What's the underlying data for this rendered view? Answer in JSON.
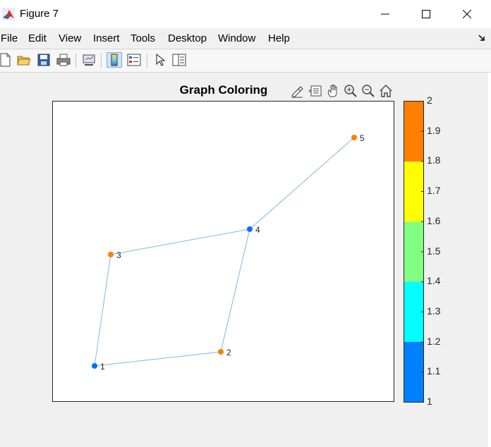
{
  "window": {
    "title": "Figure 7",
    "minimize_glyph": "─",
    "maximize_glyph": "□",
    "close_glyph": "✕"
  },
  "menu": [
    "File",
    "Edit",
    "View",
    "Insert",
    "Tools",
    "Desktop",
    "Window",
    "Help"
  ],
  "toolbar_icons": [
    "new-figure-icon",
    "open-file-icon",
    "save-icon",
    "print-icon",
    "link-plot-icon",
    "colorbar-icon",
    "legend-icon",
    "pointer-icon",
    "property-inspector-icon"
  ],
  "axes_toolbar_icons": [
    "brush-icon",
    "data-tips-icon",
    "pan-icon",
    "zoom-in-icon",
    "zoom-out-icon",
    "home-icon"
  ],
  "plot": {
    "title": "Graph Coloring",
    "nodes": [
      {
        "id": "1",
        "color_value": 1,
        "color": "#0072ff"
      },
      {
        "id": "2",
        "color_value": 2,
        "color": "#ff7f00"
      },
      {
        "id": "3",
        "color_value": 2,
        "color": "#ff7f00"
      },
      {
        "id": "4",
        "color_value": 1,
        "color": "#0072ff"
      },
      {
        "id": "5",
        "color_value": 2,
        "color": "#ff7f00"
      }
    ],
    "edges": [
      [
        "1",
        "2"
      ],
      [
        "1",
        "3"
      ],
      [
        "2",
        "4"
      ],
      [
        "3",
        "4"
      ],
      [
        "4",
        "5"
      ]
    ],
    "edge_color": "#7db9e0"
  },
  "colorbar": {
    "ticks": [
      "2",
      "1.9",
      "1.8",
      "1.7",
      "1.6",
      "1.5",
      "1.4",
      "1.3",
      "1.2",
      "1.1",
      "1"
    ],
    "colors_top_to_bottom": [
      "#ff7f00",
      "#ffff00",
      "#80ff80",
      "#00ffff",
      "#0080ff"
    ],
    "range": [
      1,
      2
    ]
  }
}
